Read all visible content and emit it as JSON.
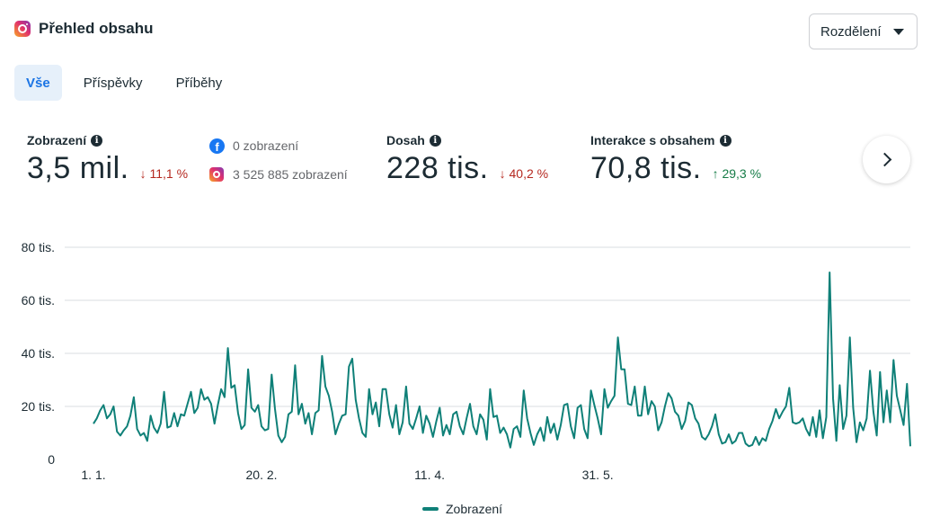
{
  "header": {
    "title": "Přehled obsahu",
    "icon": "instagram-icon"
  },
  "dropdown": {
    "label": "Rozdělení"
  },
  "tabs": [
    {
      "label": "Vše",
      "active": true
    },
    {
      "label": "Příspěvky",
      "active": false
    },
    {
      "label": "Příběhy",
      "active": false
    }
  ],
  "metrics": {
    "views": {
      "label": "Zobrazení",
      "value": "3,5 mil.",
      "delta": "11,1 %",
      "direction": "down"
    },
    "platforms": {
      "facebook": "0 zobrazení",
      "instagram": "3 525 885 zobrazení"
    },
    "reach": {
      "label": "Dosah",
      "value": "228 tis.",
      "delta": "40,2 %",
      "direction": "down"
    },
    "interactions": {
      "label": "Interakce s obsahem",
      "value": "70,8 tis.",
      "delta": "29,3 %",
      "direction": "up"
    }
  },
  "colors": {
    "line": "#0f8078",
    "down": "#b5281f",
    "up": "#167c47",
    "active_tab": "#1b74e4"
  },
  "chart_data": {
    "type": "line",
    "ylim": [
      0,
      80000
    ],
    "yticks": [
      {
        "value": 0,
        "label": "0"
      },
      {
        "value": 20000,
        "label": "20 tis."
      },
      {
        "value": 40000,
        "label": "40 tis."
      },
      {
        "value": 60000,
        "label": "60 tis."
      },
      {
        "value": 80000,
        "label": "80 tis."
      }
    ],
    "xticks": [
      "1. 1.",
      "20. 2.",
      "11. 4.",
      "31. 5."
    ],
    "xtick_index": [
      0,
      50,
      100,
      150
    ],
    "series": [
      {
        "name": "Zobrazení",
        "values": [
          13500,
          15500,
          18500,
          20500,
          15500,
          17000,
          20000,
          10500,
          9000,
          11000,
          12500,
          16500,
          23500,
          11500,
          9000,
          10000,
          7000,
          16500,
          12000,
          10000,
          13500,
          25500,
          12000,
          12500,
          17500,
          12500,
          17000,
          16500,
          21000,
          25500,
          17500,
          19500,
          26500,
          22500,
          23500,
          21000,
          13500,
          20500,
          26500,
          23500,
          42000,
          27000,
          28000,
          17500,
          11500,
          13000,
          34000,
          19500,
          18000,
          20500,
          12500,
          11000,
          11500,
          32000,
          19000,
          9000,
          6500,
          8500,
          17000,
          18000,
          35500,
          17000,
          21000,
          13500,
          17500,
          9500,
          17500,
          18500,
          39000,
          27500,
          24000,
          18000,
          9500,
          13500,
          16500,
          17000,
          35000,
          38000,
          22500,
          15500,
          10000,
          8500,
          26500,
          17000,
          21500,
          12500,
          26500,
          26500,
          17000,
          12000,
          20500,
          9500,
          14000,
          27500,
          13500,
          11500,
          15500,
          20000,
          10000,
          16500,
          13500,
          8500,
          14500,
          19500,
          9000,
          13000,
          9500,
          17000,
          18000,
          12500,
          9500,
          15500,
          21000,
          12500,
          9500,
          17000,
          15000,
          7500,
          26500,
          16000,
          16500,
          10000,
          12000,
          9500,
          4500,
          11500,
          12500,
          8500,
          26000,
          15500,
          10000,
          5500,
          9500,
          12000,
          7000,
          16000,
          10000,
          13500,
          7500,
          13000,
          20500,
          21000,
          12500,
          8000,
          19500,
          20500,
          11500,
          8000,
          26000,
          20500,
          15500,
          9500,
          26500,
          19500,
          22000,
          24000,
          46000,
          34000,
          34000,
          21000,
          20500,
          27500,
          16500,
          16500,
          27500,
          17000,
          22000,
          20000,
          11000,
          14000,
          20000,
          25000,
          23000,
          18000,
          16500,
          11500,
          14500,
          21500,
          20500,
          15500,
          13500,
          8500,
          7500,
          9500,
          12500,
          17000,
          9500,
          6000,
          6500,
          9500,
          6000,
          7000,
          10000,
          10000,
          6000,
          5000,
          5500,
          8500,
          5500,
          8000,
          7000,
          11500,
          14500,
          19000,
          15500,
          18000,
          20000,
          27000,
          14000,
          13500,
          14000,
          15500,
          11500,
          9000,
          16000,
          8500,
          18500,
          8000,
          16000,
          70500,
          23000,
          7000,
          28000,
          11500,
          16500,
          46000,
          19500,
          6500,
          14000,
          11000,
          15500,
          33500,
          18000,
          9000,
          33000,
          14000,
          26000,
          14000,
          37500,
          24000,
          18500,
          13000,
          28500,
          5000
        ]
      }
    ]
  }
}
